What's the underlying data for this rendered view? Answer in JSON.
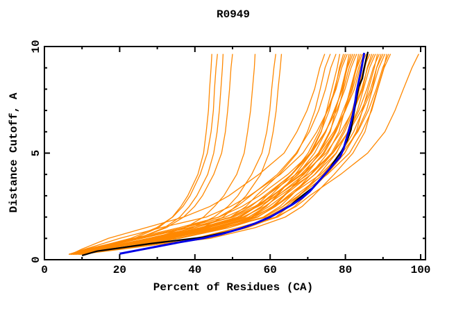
{
  "title": "R0949",
  "chart_data": {
    "type": "line",
    "title": "R0949",
    "xlabel": "Percent of Residues (CA)",
    "ylabel": "Distance Cutoff, A",
    "xlim": [
      0,
      101.3
    ],
    "ylim": [
      0,
      10
    ],
    "grid": false,
    "legend": "none",
    "axes": {
      "x": {
        "major_ticks": [
          0,
          20,
          40,
          60,
          80,
          100
        ],
        "minor_ticks": [
          10,
          30,
          50,
          70,
          90
        ],
        "tick_labels": [
          "0",
          "20",
          "40",
          "60",
          "80",
          "100"
        ]
      },
      "y": {
        "major_ticks": [
          0,
          5,
          10
        ],
        "minor_ticks": [
          1,
          2,
          3,
          4,
          6,
          7,
          8,
          9
        ],
        "tick_labels": [
          "0",
          "5",
          "10"
        ]
      }
    },
    "colors": {
      "model_curves": "#ff8800",
      "reference_black": "#000000",
      "reference_blue": "#0000e6",
      "frame": "#000000"
    },
    "cutoffs": [
      0.25,
      0.5,
      1,
      1.5,
      2,
      2.5,
      3,
      4,
      5,
      6,
      7,
      8,
      9,
      9.65
    ],
    "series": [
      {
        "name": "model-curves-orange",
        "role": "predicted model accuracy curves (percent of CA residues under distance cutoff)",
        "color_key": "model_curves",
        "curves": [
          [
            7,
            12.6,
            23.9,
            30.3,
            34,
            36.3,
            38.1,
            40.8,
            42.3,
            43,
            43.6,
            43.9,
            44.3,
            44.5
          ],
          [
            7.5,
            12.1,
            22.9,
            29.8,
            34.1,
            36.8,
            38.7,
            41.4,
            43.3,
            44.3,
            44.9,
            45.2,
            45.6,
            46
          ],
          [
            6.5,
            12.7,
            24.9,
            31.9,
            36,
            38.5,
            40.5,
            43.4,
            45,
            45.9,
            46.5,
            46.9,
            47.3,
            47.5
          ],
          [
            8,
            13,
            24.8,
            32.4,
            37,
            39.9,
            42,
            45,
            47.1,
            48.1,
            48.7,
            49.2,
            49.6,
            50
          ],
          [
            7,
            14.4,
            29.1,
            37.4,
            42.3,
            45.2,
            47.7,
            51.1,
            53.1,
            54,
            54.8,
            55.3,
            55.8,
            56
          ],
          [
            8.5,
            14.9,
            29.7,
            39.2,
            45.1,
            48.8,
            51.4,
            55.1,
            57.8,
            59.1,
            59.9,
            60.4,
            61,
            61.5
          ],
          [
            7.5,
            15.8,
            32.5,
            41.9,
            47.5,
            50.8,
            53.6,
            57.5,
            59.7,
            60.8,
            61.6,
            62.1,
            62.7,
            63
          ],
          [
            7,
            10,
            17,
            27,
            37,
            44,
            49,
            57,
            63.7,
            67.1,
            69.8,
            71.8,
            73.2,
            74.5
          ],
          [
            8,
            14.1,
            27.7,
            40,
            49.5,
            53.6,
            56.3,
            62.4,
            67.2,
            69.9,
            71.9,
            73.3,
            74.6,
            76
          ],
          [
            6.5,
            12.2,
            25,
            37,
            46.3,
            51.2,
            54.8,
            61.9,
            66.9,
            70.4,
            72.9,
            74.7,
            76.1,
            77.5
          ],
          [
            9,
            18,
            34,
            46.5,
            54.9,
            59,
            61.8,
            66.7,
            70.9,
            73.6,
            75,
            76.4,
            77.8,
            78.5
          ],
          [
            7.5,
            14.7,
            29.8,
            42.8,
            52.1,
            56.5,
            60.1,
            65.8,
            70.1,
            73,
            75.2,
            77.3,
            78.4,
            79.5
          ],
          [
            8,
            14.5,
            28.9,
            41.8,
            51.9,
            56.2,
            59.1,
            65.6,
            70.6,
            73.5,
            75.7,
            77.1,
            78.6,
            80
          ],
          [
            6.5,
            10.9,
            20,
            31,
            43,
            49.5,
            54.5,
            62.7,
            68.7,
            72.4,
            75.3,
            77.5,
            79,
            80.5
          ],
          [
            9.5,
            18.8,
            35.2,
            48.1,
            56.7,
            61,
            63.8,
            68.8,
            73.1,
            76,
            77.4,
            78.9,
            80.3,
            81
          ],
          [
            7,
            14.5,
            30.1,
            43.5,
            53.2,
            57.7,
            61.4,
            67.3,
            71.8,
            74.8,
            77,
            79.3,
            80.4,
            81.5
          ],
          [
            8.5,
            14.4,
            27.6,
            40.1,
            49.7,
            54.8,
            58.5,
            65.8,
            71,
            74.7,
            77.2,
            79.1,
            80.5,
            82
          ],
          [
            7.5,
            14.3,
            29.3,
            42.8,
            53.3,
            57.8,
            60.8,
            67.5,
            72.8,
            75.8,
            78,
            79.5,
            81,
            82.5
          ],
          [
            6.8,
            11.4,
            23.6,
            35.8,
            46.4,
            52.5,
            57.1,
            64.7,
            70.8,
            74.6,
            77.7,
            79.9,
            81.5,
            83
          ],
          [
            9,
            18.7,
            35.8,
            49.2,
            58.2,
            62.6,
            65.6,
            70.8,
            75.3,
            78.3,
            79.8,
            81.3,
            82.8,
            83.5
          ],
          [
            8,
            15.6,
            31.6,
            45.2,
            55.1,
            59.7,
            63.5,
            69.6,
            74.1,
            77.2,
            79.4,
            81.7,
            82.9,
            84
          ],
          [
            7,
            14,
            29.5,
            43.4,
            54.3,
            58.9,
            62,
            69,
            74.4,
            77.5,
            79.9,
            81.4,
            83,
            84.5
          ],
          [
            8.5,
            14.6,
            28.4,
            41.4,
            51.3,
            56.7,
            60.5,
            68.2,
            73.5,
            77.4,
            80,
            81.9,
            83.5,
            85
          ],
          [
            7.5,
            12.2,
            24.7,
            37.1,
            48.1,
            54.3,
            59,
            66.8,
            73,
            76.9,
            80,
            82.4,
            83.9,
            85.5
          ],
          [
            9.5,
            21,
            42,
            54,
            61.5,
            65,
            67.8,
            73,
            77.6,
            80.6,
            82.2,
            83.7,
            85.2,
            86
          ],
          [
            8,
            15.1,
            30.8,
            44.9,
            55.9,
            60.6,
            63.7,
            70.8,
            76.3,
            79.4,
            81.8,
            83.4,
            84.9,
            86.5
          ],
          [
            7,
            15,
            31.8,
            46.2,
            56.6,
            61.4,
            65.4,
            71.8,
            76.6,
            79.8,
            82.2,
            84.6,
            85.8,
            87
          ],
          [
            8.5,
            13.2,
            25.9,
            38.5,
            49.6,
            55.9,
            60.6,
            68.5,
            74.9,
            78.8,
            82,
            84.3,
            85.9,
            87.5
          ],
          [
            7.5,
            14.7,
            30.8,
            45.3,
            56.6,
            61.4,
            64.7,
            71.9,
            77.5,
            80.7,
            83.2,
            84.8,
            86.4,
            88
          ],
          [
            9,
            19.3,
            40,
            53,
            62,
            66.5,
            69.4,
            75,
            79.8,
            82.9,
            84.5,
            86.1,
            87.7,
            88.5
          ],
          [
            6.5,
            13.1,
            28,
            42,
            52.7,
            58.5,
            62.6,
            70.9,
            76.6,
            80.8,
            83.6,
            85.7,
            87.4,
            89
          ],
          [
            8,
            16.2,
            33.3,
            47.9,
            58.5,
            63.4,
            67.5,
            74,
            78.9,
            82.2,
            84.6,
            87.1,
            88.3,
            89.5
          ],
          [
            7,
            12,
            25.3,
            38.5,
            50.2,
            56.8,
            61.8,
            70.1,
            76.7,
            80.9,
            84.2,
            86.7,
            88.3,
            90
          ],
          [
            8.5,
            15.9,
            32.3,
            47,
            58.5,
            63.4,
            66.7,
            74.1,
            79.8,
            83.1,
            85.6,
            87.2,
            88.9,
            90.5
          ],
          [
            7.5,
            20,
            44,
            56,
            64,
            68.5,
            71.5,
            77,
            82,
            85.2,
            86.8,
            88.5,
            90.2,
            91
          ],
          [
            9,
            15.6,
            30.5,
            44.5,
            55.2,
            61,
            65.1,
            73.4,
            79.1,
            83.3,
            86.1,
            88.2,
            89.9,
            91.5
          ],
          [
            8,
            15.6,
            32.4,
            47.5,
            59.2,
            64.3,
            67.6,
            75.2,
            81.1,
            84.4,
            87,
            88.6,
            90.3,
            92
          ],
          [
            9,
            17.1,
            40,
            51.5,
            61.5,
            66.9,
            70.5,
            78.7,
            85.9,
            90.5,
            93.2,
            95.4,
            97.7,
            99.5
          ]
        ]
      },
      {
        "name": "reference-curve-black",
        "role": "highlighted reference curve (black)",
        "color_key": "reference_black",
        "points": [
          [
            10,
            0.2
          ],
          [
            14,
            0.4
          ],
          [
            20,
            0.55
          ],
          [
            28,
            0.75
          ],
          [
            35,
            0.9
          ],
          [
            42,
            1.05
          ],
          [
            50,
            1.35
          ],
          [
            56,
            1.7
          ],
          [
            61,
            2.1
          ],
          [
            65,
            2.5
          ],
          [
            68.5,
            3
          ],
          [
            71.5,
            3.4
          ],
          [
            73.5,
            3.8
          ],
          [
            75.5,
            4.2
          ],
          [
            77,
            4.6
          ],
          [
            79,
            5.1
          ],
          [
            80.5,
            5.6
          ],
          [
            81.5,
            6.1
          ],
          [
            82,
            6.6
          ],
          [
            82.5,
            7.1
          ],
          [
            83,
            7.6
          ],
          [
            83.5,
            8.1
          ],
          [
            84.5,
            8.5
          ],
          [
            85,
            9
          ],
          [
            85.5,
            9.4
          ],
          [
            86,
            9.75
          ]
        ]
      },
      {
        "name": "reference-curve-blue",
        "role": "highlighted reference curve (blue, thick)",
        "color_key": "reference_blue",
        "points": [
          [
            20,
            0.28
          ],
          [
            25,
            0.45
          ],
          [
            30,
            0.62
          ],
          [
            36,
            0.82
          ],
          [
            42,
            1
          ],
          [
            47,
            1.2
          ],
          [
            52,
            1.45
          ],
          [
            56,
            1.7
          ],
          [
            60,
            2
          ],
          [
            63,
            2.3
          ],
          [
            66,
            2.6
          ],
          [
            68.5,
            2.9
          ],
          [
            70.5,
            3.2
          ],
          [
            72.5,
            3.6
          ],
          [
            74.5,
            4
          ],
          [
            76.5,
            4.4
          ],
          [
            78.5,
            4.8
          ],
          [
            79.5,
            5.2
          ],
          [
            80.5,
            5.8
          ],
          [
            81.3,
            6.3
          ],
          [
            82,
            6.8
          ],
          [
            82.6,
            7.4
          ],
          [
            83,
            7.9
          ],
          [
            83.6,
            8.4
          ],
          [
            84.2,
            8.9
          ],
          [
            84.6,
            9.3
          ],
          [
            85,
            9.7
          ]
        ]
      }
    ]
  }
}
